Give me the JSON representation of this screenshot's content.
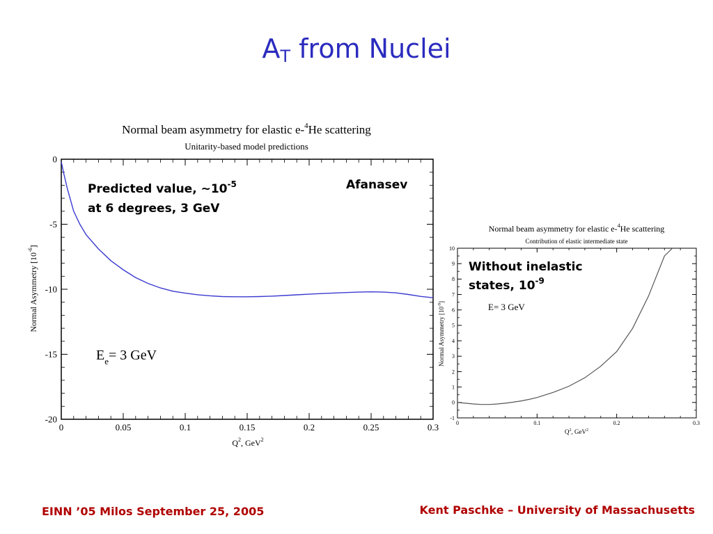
{
  "slide": {
    "title_main": "A",
    "title_sub": "T",
    "title_rest": " from Nuclei",
    "footer_left": "EINN ’05  Milos  September 25, 2005",
    "footer_right": "Kent Paschke – University of Massachusetts"
  },
  "chart_data": [
    {
      "type": "line",
      "title_prefix": "Normal beam asymmetry for elastic e-",
      "title_sup": "4",
      "title_suffix": "He scattering",
      "subtitle": "Unitarity-based model predictions",
      "xlabel_main": "Q",
      "xlabel_sup": "2",
      "xlabel_rest": ",  GeV",
      "xlabel_sup2": "2",
      "ylabel_main": "Normal Asymmetry [10",
      "ylabel_sup": "-6",
      "ylabel_rest": "]",
      "xlim": [
        0,
        0.3
      ],
      "ylim": [
        -20,
        0
      ],
      "xticks": [
        "0",
        "0.05",
        "0.1",
        "0.15",
        "0.2",
        "0.25",
        "0.3"
      ],
      "xtick_values": [
        0,
        0.05,
        0.1,
        0.15,
        0.2,
        0.25,
        0.3
      ],
      "yticks": [
        "0",
        "-5",
        "-10",
        "-15",
        "-20"
      ],
      "ytick_values": [
        0,
        -5,
        -10,
        -15,
        -20
      ],
      "line_color": "#3a3ad0",
      "series": [
        {
          "x": [
            0,
            0.002,
            0.005,
            0.01,
            0.015,
            0.02,
            0.03,
            0.04,
            0.05,
            0.06,
            0.07,
            0.08,
            0.09,
            0.1,
            0.11,
            0.12,
            0.13,
            0.14,
            0.15,
            0.16,
            0.17,
            0.18,
            0.19,
            0.2,
            0.21,
            0.22,
            0.23,
            0.24,
            0.25,
            0.26,
            0.27,
            0.28,
            0.29,
            0.3
          ],
          "values": [
            -0.2,
            -1.1,
            -2.3,
            -4.0,
            -5.0,
            -5.8,
            -6.9,
            -7.8,
            -8.5,
            -9.1,
            -9.55,
            -9.9,
            -10.15,
            -10.3,
            -10.42,
            -10.5,
            -10.56,
            -10.58,
            -10.58,
            -10.56,
            -10.53,
            -10.48,
            -10.43,
            -10.38,
            -10.33,
            -10.29,
            -10.25,
            -10.22,
            -10.2,
            -10.22,
            -10.28,
            -10.4,
            -10.55,
            -10.65
          ]
        }
      ],
      "annotations": {
        "author": "Afanasev",
        "predicted_line1": "Predicted value, ~10",
        "predicted_sup": "-5",
        "predicted_line2": "at 6 degrees, 3 GeV",
        "energy_main": "E",
        "energy_sub": "e",
        "energy_rest": "= 3 GeV"
      }
    },
    {
      "type": "line",
      "title_prefix": "Normal beam asymmetry for elastic e-",
      "title_sup": "4",
      "title_suffix": "He scattering",
      "subtitle": "Contribution of elastic intermediate state",
      "xlabel_main": "Q",
      "xlabel_sup": "2",
      "xlabel_rest": ", GeV",
      "xlabel_sup2": "2",
      "ylabel_main": "Normal Asymmetry [10",
      "ylabel_sup": "-9",
      "ylabel_rest": "]",
      "xlim": [
        0,
        0.3
      ],
      "ylim": [
        -1,
        10
      ],
      "xticks": [
        "0",
        "0.1",
        "0.2",
        "0.3"
      ],
      "xtick_values": [
        0,
        0.1,
        0.2,
        0.3
      ],
      "yticks": [
        "-1",
        "0",
        "1",
        "2",
        "3",
        "4",
        "5",
        "6",
        "7",
        "8",
        "9",
        "10"
      ],
      "ytick_values": [
        -1,
        0,
        1,
        2,
        3,
        4,
        5,
        6,
        7,
        8,
        9,
        10
      ],
      "line_color": "#555555",
      "series": [
        {
          "x": [
            0,
            0.01,
            0.02,
            0.03,
            0.04,
            0.05,
            0.06,
            0.07,
            0.08,
            0.09,
            0.1,
            0.12,
            0.14,
            0.16,
            0.18,
            0.2,
            0.22,
            0.24,
            0.26,
            0.27
          ],
          "values": [
            0.0,
            -0.05,
            -0.1,
            -0.13,
            -0.13,
            -0.1,
            -0.05,
            0.02,
            0.1,
            0.2,
            0.32,
            0.65,
            1.05,
            1.6,
            2.35,
            3.3,
            4.8,
            6.9,
            9.5,
            10.3
          ]
        }
      ],
      "annotations": {
        "note_line1": "Without inelastic",
        "note_line2_main": "states, 10",
        "note_line2_sup": "-9",
        "energy": "E= 3 GeV"
      }
    }
  ]
}
